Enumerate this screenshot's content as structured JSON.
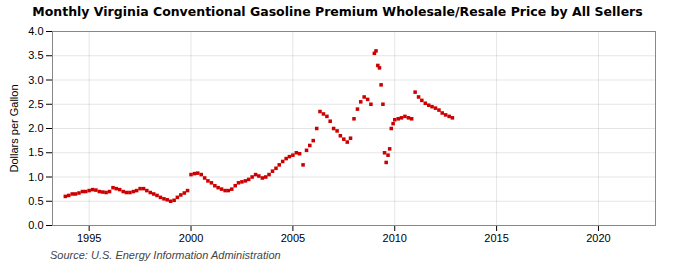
{
  "chart_data": {
    "type": "scatter",
    "title": "Monthly Virginia Conventional Gasoline Premium Wholesale/Resale Price by All Sellers",
    "ylabel": "Dollars per Gallon",
    "caption": "Source: U.S. Energy Information Administration",
    "color": "#cc0000",
    "marker": "square",
    "grid": true,
    "xlim": [
      1993.2,
      2022.8
    ],
    "xticks": [
      1995,
      2000,
      2005,
      2010,
      2015,
      2020
    ],
    "ylim": [
      0.0,
      4.0
    ],
    "yticks": [
      {
        "value": 0.0,
        "label": "0.0"
      },
      0.5,
      {
        "value": 1.0,
        "label": "1.0"
      },
      1.5,
      {
        "value": 2.0,
        "label": "2.0"
      },
      2.5,
      {
        "value": 3.0,
        "label": "3.0"
      },
      3.5,
      {
        "value": 4.0,
        "label": "4.0"
      }
    ],
    "x": [
      1993.83,
      1994.0,
      1994.17,
      1994.33,
      1994.5,
      1994.67,
      1994.83,
      1995.0,
      1995.17,
      1995.33,
      1995.5,
      1995.67,
      1995.83,
      1996.0,
      1996.17,
      1996.33,
      1996.5,
      1996.67,
      1996.83,
      1997.0,
      1997.17,
      1997.33,
      1997.5,
      1997.67,
      1997.83,
      1998.0,
      1998.17,
      1998.33,
      1998.5,
      1998.67,
      1998.83,
      1999.0,
      1999.17,
      1999.33,
      1999.5,
      1999.67,
      1999.83,
      2000.0,
      2000.17,
      2000.33,
      2000.5,
      2000.67,
      2000.83,
      2001.0,
      2001.17,
      2001.33,
      2001.5,
      2001.67,
      2001.83,
      2002.0,
      2002.17,
      2002.33,
      2002.5,
      2002.67,
      2002.83,
      2003.0,
      2003.17,
      2003.33,
      2003.5,
      2003.67,
      2003.83,
      2004.0,
      2004.17,
      2004.33,
      2004.5,
      2004.67,
      2004.83,
      2005.0,
      2005.17,
      2005.33,
      2005.5,
      2005.67,
      2005.83,
      2006.0,
      2006.17,
      2006.33,
      2006.5,
      2006.67,
      2006.83,
      2007.0,
      2007.17,
      2007.33,
      2007.5,
      2007.67,
      2007.83,
      2008.0,
      2008.17,
      2008.33,
      2008.5,
      2008.67,
      2008.83,
      2009.0,
      2009.08,
      2009.17,
      2009.25,
      2009.33,
      2009.42,
      2009.5,
      2009.58,
      2009.67,
      2009.75,
      2009.83,
      2009.92,
      2010.0,
      2010.17,
      2010.33,
      2010.5,
      2010.67,
      2010.83,
      2011.0,
      2011.17,
      2011.33,
      2011.5,
      2011.67,
      2011.83,
      2012.0,
      2012.17,
      2012.33,
      2012.5,
      2012.67,
      2012.83
    ],
    "values": [
      0.6,
      0.62,
      0.65,
      0.65,
      0.67,
      0.7,
      0.7,
      0.72,
      0.74,
      0.73,
      0.7,
      0.69,
      0.68,
      0.7,
      0.78,
      0.76,
      0.74,
      0.7,
      0.68,
      0.68,
      0.7,
      0.72,
      0.76,
      0.76,
      0.72,
      0.68,
      0.65,
      0.62,
      0.58,
      0.55,
      0.53,
      0.5,
      0.52,
      0.58,
      0.63,
      0.67,
      0.72,
      1.05,
      1.07,
      1.08,
      1.05,
      0.98,
      0.92,
      0.88,
      0.82,
      0.78,
      0.75,
      0.72,
      0.72,
      0.75,
      0.82,
      0.88,
      0.9,
      0.92,
      0.95,
      1.0,
      1.05,
      1.02,
      0.98,
      1.0,
      1.05,
      1.12,
      1.18,
      1.25,
      1.32,
      1.38,
      1.42,
      1.45,
      1.5,
      1.48,
      1.25,
      1.55,
      1.65,
      1.75,
      2.0,
      2.35,
      2.3,
      2.25,
      2.15,
      2.0,
      1.95,
      1.85,
      1.78,
      1.72,
      1.8,
      2.2,
      2.4,
      2.55,
      2.65,
      2.6,
      2.5,
      3.55,
      3.6,
      3.3,
      3.25,
      2.9,
      2.5,
      1.5,
      1.3,
      1.45,
      1.58,
      2.0,
      2.1,
      2.18,
      2.2,
      2.22,
      2.25,
      2.22,
      2.2,
      2.75,
      2.65,
      2.58,
      2.52,
      2.48,
      2.45,
      2.42,
      2.38,
      2.32,
      2.28,
      2.25,
      2.22
    ]
  }
}
